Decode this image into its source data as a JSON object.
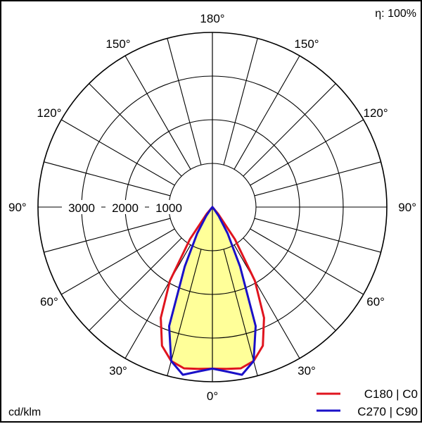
{
  "chart_data": {
    "type": "polar",
    "unit_label": "cd/klm",
    "efficiency_label": "η: 100%",
    "radial_ticks": [
      1000,
      2000,
      3000
    ],
    "radial_max": 4000,
    "radial_tick_labels": [
      "1000",
      "2000",
      "3000"
    ],
    "angle_labels": [
      "0°",
      "30°",
      "60°",
      "90°",
      "120°",
      "150°",
      "180°"
    ],
    "series": [
      {
        "name": "C180 | C0",
        "color": "#e0141e",
        "angles": [
          0,
          5,
          10,
          15,
          20,
          25,
          30,
          35,
          40,
          45
        ],
        "values": [
          3700,
          3720,
          3750,
          3650,
          3380,
          2800,
          1950,
          900,
          200,
          0
        ]
      },
      {
        "name": "C270 | C90",
        "color": "#1a10c8",
        "angles": [
          0,
          5,
          10,
          15,
          20,
          25,
          30,
          35,
          40,
          45
        ],
        "values": [
          3700,
          3780,
          3900,
          3650,
          2900,
          1500,
          700,
          250,
          50,
          0
        ]
      }
    ],
    "fill_color": "#ffff99"
  }
}
